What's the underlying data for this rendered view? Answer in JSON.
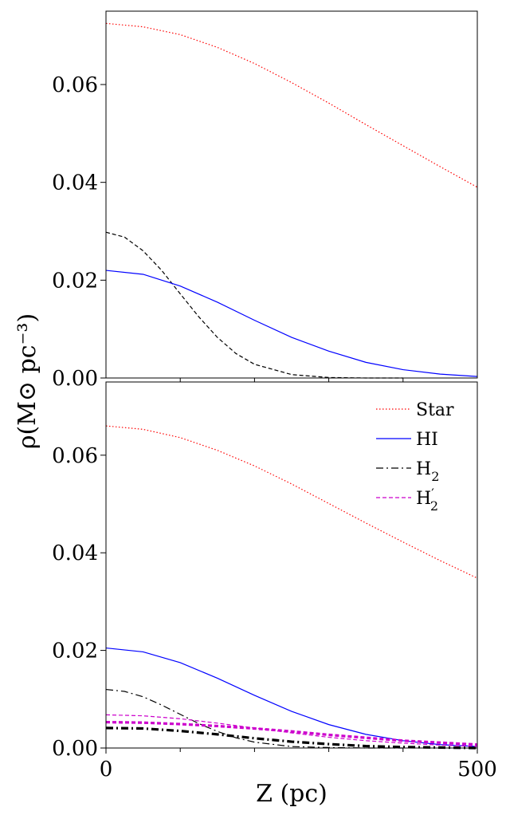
{
  "ylabel": "ρ(M⊙ pc⁻³)",
  "xlabel": "Z (pc)",
  "chart_data": [
    {
      "type": "line",
      "panel": "top",
      "title": "",
      "xlabel": "",
      "ylabel": "ρ(M⊙ pc⁻³)",
      "xlim": [
        0,
        500
      ],
      "ylim": [
        0,
        0.075
      ],
      "yticks": [
        "0.00",
        "0.02",
        "0.04",
        "0.06"
      ],
      "xticks": [],
      "grid": false,
      "legend": "none",
      "series": [
        {
          "color": "#ff0000",
          "style": "dotted",
          "width": 1.2,
          "x": [
            0,
            50,
            100,
            150,
            200,
            250,
            300,
            350,
            400,
            450,
            500
          ],
          "y": [
            0.0725,
            0.0718,
            0.0702,
            0.0676,
            0.0643,
            0.0604,
            0.0562,
            0.0518,
            0.0475,
            0.0432,
            0.039
          ]
        },
        {
          "color": "#000000",
          "style": "dashed",
          "width": 1.2,
          "x": [
            0,
            25,
            50,
            75,
            100,
            125,
            150,
            175,
            200,
            250,
            300,
            350,
            400
          ],
          "y": [
            0.0298,
            0.0288,
            0.026,
            0.022,
            0.0172,
            0.0125,
            0.0083,
            0.005,
            0.0028,
            0.0007,
            0.0001,
            0.0,
            0.0
          ]
        },
        {
          "color": "#0000ff",
          "style": "solid",
          "width": 1.2,
          "x": [
            0,
            50,
            100,
            150,
            200,
            250,
            300,
            350,
            400,
            450,
            500
          ],
          "y": [
            0.022,
            0.0212,
            0.0188,
            0.0155,
            0.0118,
            0.0083,
            0.0055,
            0.0032,
            0.0017,
            0.0008,
            0.0003
          ]
        }
      ]
    },
    {
      "type": "line",
      "panel": "bottom",
      "title": "",
      "xlabel": "Z (pc)",
      "ylabel": "ρ(M⊙ pc⁻³)",
      "xlim": [
        0,
        500
      ],
      "ylim": [
        0,
        0.075
      ],
      "yticks": [
        "0.00",
        "0.02",
        "0.04",
        "0.06"
      ],
      "xticks": [
        "0",
        "500"
      ],
      "grid": false,
      "legend": "top-right",
      "legend_entries": [
        {
          "label": "Star",
          "color": "#ff0000",
          "style": "dotted"
        },
        {
          "label": "HI",
          "color": "#0000ff",
          "style": "solid"
        },
        {
          "label": "H",
          "sub": "2",
          "sup": "",
          "color": "#000000",
          "style": "dashdot"
        },
        {
          "label": "H",
          "sub": "2",
          "sup": "′",
          "color": "#cc00cc",
          "style": "dashed"
        }
      ],
      "series": [
        {
          "color": "#ff0000",
          "style": "dotted",
          "width": 1.2,
          "x": [
            0,
            50,
            100,
            150,
            200,
            250,
            300,
            350,
            400,
            450,
            500
          ],
          "y": [
            0.066,
            0.0653,
            0.0636,
            0.061,
            0.0578,
            0.0541,
            0.0501,
            0.0461,
            0.0422,
            0.0384,
            0.0348
          ]
        },
        {
          "color": "#0000ff",
          "style": "solid",
          "width": 1.2,
          "x": [
            0,
            50,
            100,
            150,
            200,
            250,
            300,
            350,
            400,
            450,
            500
          ],
          "y": [
            0.0205,
            0.0197,
            0.0175,
            0.0143,
            0.0108,
            0.0075,
            0.0048,
            0.0028,
            0.0015,
            0.0007,
            0.0003
          ]
        },
        {
          "color": "#000000",
          "style": "dashdot",
          "width": 1.2,
          "x": [
            0,
            25,
            50,
            75,
            100,
            125,
            150,
            175,
            200,
            250,
            300,
            350,
            400
          ],
          "y": [
            0.012,
            0.0116,
            0.0105,
            0.0088,
            0.0069,
            0.005,
            0.0034,
            0.0021,
            0.0012,
            0.0003,
            0.0001,
            0.0,
            0.0
          ]
        },
        {
          "color": "#cc00cc",
          "style": "dashed",
          "width": 1.2,
          "x": [
            0,
            50,
            100,
            150,
            200,
            250,
            300,
            350,
            400,
            450,
            500
          ],
          "y": [
            0.0068,
            0.0066,
            0.006,
            0.0051,
            0.0041,
            0.0031,
            0.0022,
            0.0015,
            0.001,
            0.0006,
            0.0003
          ]
        },
        {
          "color": "#000000",
          "style": "dashdot",
          "width": 3.2,
          "x": [
            0,
            50,
            100,
            150,
            200,
            250,
            300,
            350,
            400,
            450,
            500
          ],
          "y": [
            0.0041,
            0.004,
            0.0035,
            0.0028,
            0.002,
            0.0013,
            0.0008,
            0.0004,
            0.0002,
            0.0001,
            0.0
          ]
        },
        {
          "color": "#cc00cc",
          "style": "dashed",
          "width": 3.2,
          "x": [
            0,
            50,
            100,
            150,
            200,
            250,
            300,
            350,
            400,
            450,
            500
          ],
          "y": [
            0.0053,
            0.0052,
            0.0049,
            0.0045,
            0.004,
            0.0034,
            0.0027,
            0.0021,
            0.0015,
            0.0011,
            0.0007
          ]
        }
      ]
    }
  ]
}
